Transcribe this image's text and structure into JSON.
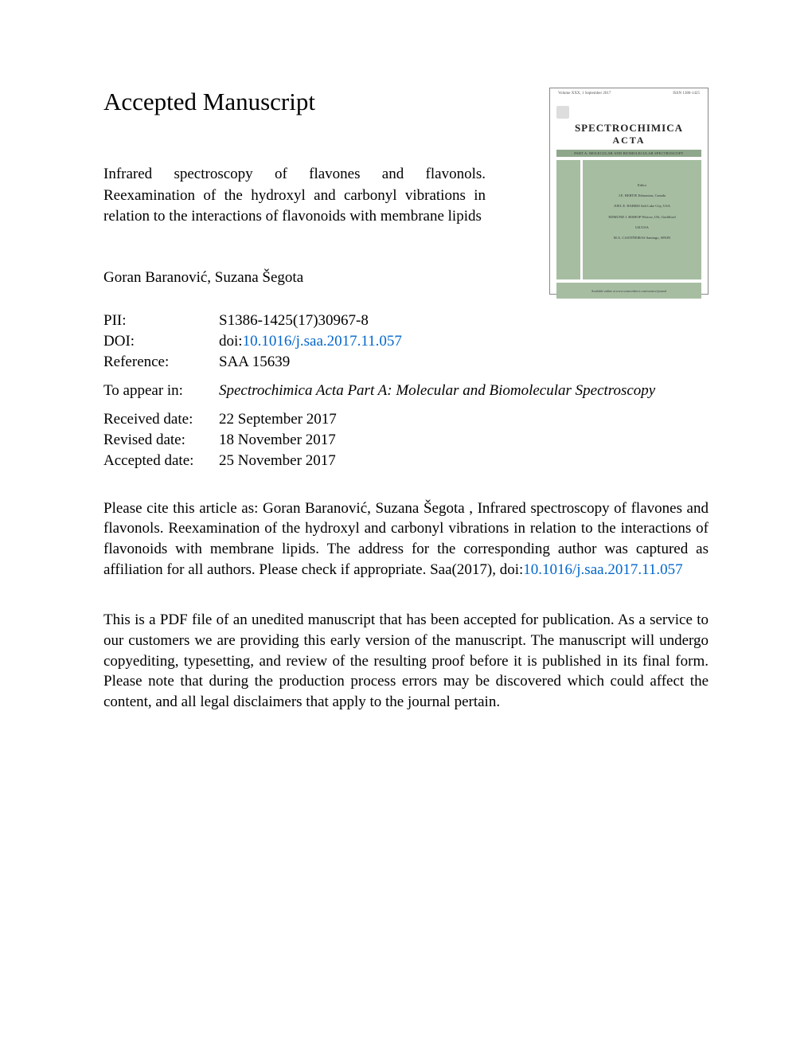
{
  "page_heading": "Accepted Manuscript",
  "article_title": "Infrared spectroscopy of flavones and flavonols. Reexamination of the hydroxyl and carbonyl vibrations in relation to the interactions of flavonoids with membrane lipids",
  "authors": "Goran Baranović, Suzana Šegota",
  "meta": {
    "pii_label": "PII:",
    "pii_value": "S1386-1425(17)30967-8",
    "doi_label": "DOI:",
    "doi_prefix": "doi:",
    "doi_link": "10.1016/j.saa.2017.11.057",
    "reference_label": "Reference:",
    "reference_value": "SAA 15639",
    "to_appear_label": "To appear in:",
    "journal_name": "Spectrochimica Acta Part A: Molecular and Biomolecular Spectroscopy",
    "received_label": "Received date:",
    "received_value": "22 September 2017",
    "revised_label": "Revised date:",
    "revised_value": "18 November 2017",
    "accepted_label": "Accepted date:",
    "accepted_value": "25 November 2017"
  },
  "citation": {
    "prefix": "Please cite this article as: Goran Baranović, Suzana Šegota , Infrared spectroscopy of flavones and flavonols. Reexamination of the hydroxyl and carbonyl vibrations in relation to the interactions of flavonoids with membrane lipids. The address for the corresponding author was captured as affiliation for all authors. Please check if appropriate. Saa(2017), doi:",
    "link": "10.1016/j.saa.2017.11.057"
  },
  "disclaimer": "This is a PDF file of an unedited manuscript that has been accepted for publication. As a service to our customers we are providing this early version of the manuscript. The manuscript will undergo copyediting, typesetting, and review of the resulting proof before it is published in its final form. Please note that during the production process errors may be discovered which could affect the content, and all legal disclaimers that apply to the journal pertain.",
  "cover": {
    "volume_line": "Volume XXX, 1 September 2017",
    "issn": "ISSN 1386-1425",
    "title_line1": "SPECTROCHIMICA",
    "title_line2": "ACTA",
    "bar_text": "PART A: MOLECULAR AND BIOMOLECULAR SPECTROSCOPY",
    "editor_heading": "Editor",
    "editor1": "J.E. BERTIE\nEdmonton, Canada",
    "editor2": "JOEL E. HARRIS\nSalt Lake City, USA",
    "editor3": "EDMUND J. BISHOP\nWistow, UK; Guildford",
    "editor4": "UK/USA",
    "editor5": "M.A. CASTIÑEIRAS\nSantiago, SPAIN",
    "bottom_text": "Available online at www.sciencedirect.com/science/journal"
  },
  "colors": {
    "link": "#0066cc",
    "cover_green": "#a6bda2",
    "cover_bar_green": "#8fa88c",
    "text": "#000000",
    "background": "#ffffff"
  }
}
